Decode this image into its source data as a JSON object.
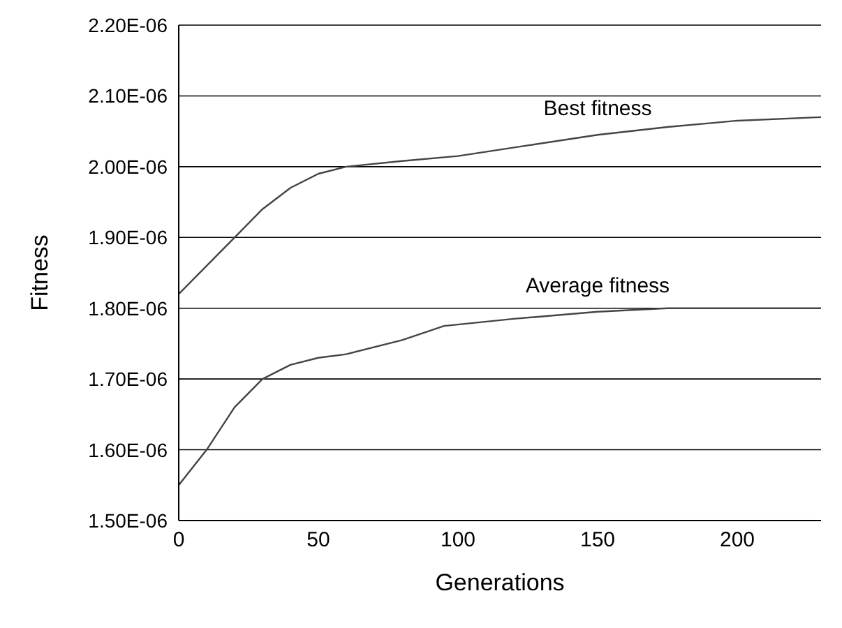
{
  "chart_data": {
    "type": "line",
    "xlabel": "Generations",
    "ylabel": "Fitness",
    "xlim": [
      0,
      230
    ],
    "xticks": [
      0,
      50,
      100,
      150,
      200
    ],
    "ylim": [
      1.5e-06,
      2.2e-06
    ],
    "yticks": [
      {
        "value": 1.5e-06,
        "label": "1.50E-06"
      },
      {
        "value": 1.6e-06,
        "label": "1.60E-06"
      },
      {
        "value": 1.7e-06,
        "label": "1.70E-06"
      },
      {
        "value": 1.8e-06,
        "label": "1.80E-06"
      },
      {
        "value": 1.9e-06,
        "label": "1.90E-06"
      },
      {
        "value": 2e-06,
        "label": "2.00E-06"
      },
      {
        "value": 2.1e-06,
        "label": "2.10E-06"
      },
      {
        "value": 2.2e-06,
        "label": "2.20E-06"
      }
    ],
    "grid": "y",
    "legend": false,
    "marker": "none",
    "line_style": "solid",
    "series": [
      {
        "name": "Best fitness",
        "color": "#444444",
        "x": [
          0,
          10,
          20,
          30,
          40,
          50,
          60,
          80,
          100,
          125,
          150,
          175,
          200,
          230
        ],
        "values": [
          1.82e-06,
          1.86e-06,
          1.9e-06,
          1.94e-06,
          1.97e-06,
          1.99e-06,
          2e-06,
          2.008e-06,
          2.015e-06,
          2.03e-06,
          2.045e-06,
          2.056e-06,
          2.065e-06,
          2.07e-06
        ]
      },
      {
        "name": "Average fitness",
        "color": "#444444",
        "x": [
          0,
          10,
          20,
          30,
          40,
          50,
          60,
          80,
          95,
          120,
          150,
          175,
          200,
          230
        ],
        "values": [
          1.55e-06,
          1.6e-06,
          1.66e-06,
          1.7e-06,
          1.72e-06,
          1.73e-06,
          1.735e-06,
          1.755e-06,
          1.775e-06,
          1.785e-06,
          1.795e-06,
          1.8e-06,
          1.8e-06,
          1.8e-06
        ]
      }
    ]
  }
}
